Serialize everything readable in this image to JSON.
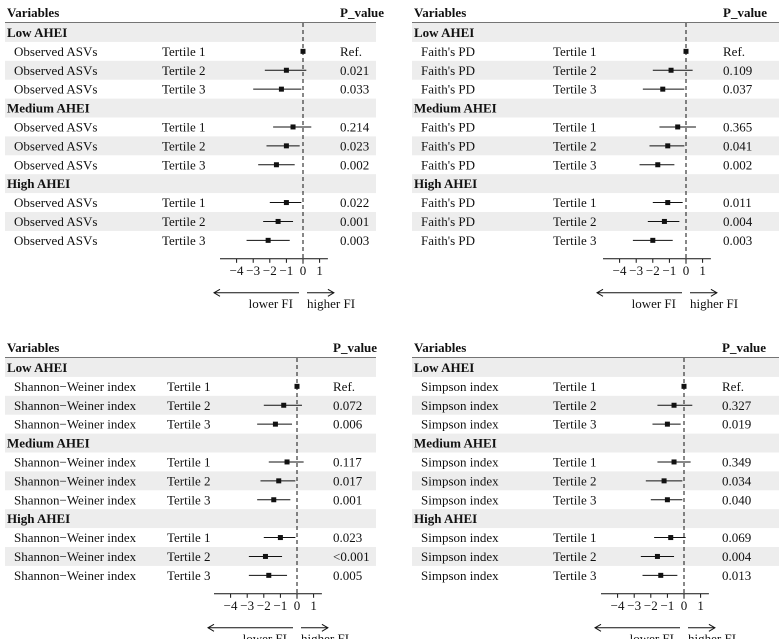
{
  "chart_data": [
    {
      "type": "forest",
      "header": {
        "variables": "Variables",
        "p_value": "P_value"
      },
      "metric": "Observed ASVs",
      "groups": [
        {
          "label": "Low AHEI",
          "rows": [
            {
              "tertile": "Tertile 1",
              "est": 0,
              "lo": 0,
              "hi": 0,
              "p": "Ref."
            },
            {
              "tertile": "Tertile 2",
              "est": -1.0,
              "lo": -2.3,
              "hi": 0.2,
              "p": "0.021"
            },
            {
              "tertile": "Tertile 3",
              "est": -1.3,
              "lo": -3.0,
              "hi": -0.1,
              "p": "0.033"
            }
          ]
        },
        {
          "label": "Medium AHEI",
          "rows": [
            {
              "tertile": "Tertile 1",
              "est": -0.6,
              "lo": -1.8,
              "hi": 0.5,
              "p": "0.214"
            },
            {
              "tertile": "Tertile 2",
              "est": -1.0,
              "lo": -2.2,
              "hi": -0.2,
              "p": "0.023"
            },
            {
              "tertile": "Tertile 3",
              "est": -1.6,
              "lo": -2.7,
              "hi": -0.5,
              "p": "0.002"
            }
          ]
        },
        {
          "label": "High AHEI",
          "rows": [
            {
              "tertile": "Tertile 1",
              "est": -1.0,
              "lo": -2.0,
              "hi": -0.1,
              "p": "0.022"
            },
            {
              "tertile": "Tertile 2",
              "est": -1.5,
              "lo": -2.4,
              "hi": -0.6,
              "p": "0.001"
            },
            {
              "tertile": "Tertile 3",
              "est": -2.1,
              "lo": -3.4,
              "hi": -0.8,
              "p": "0.003"
            }
          ]
        }
      ],
      "xticks": [
        "−4",
        "−3",
        "−2",
        "−1",
        "0",
        "1"
      ],
      "xtick_values": [
        -4,
        -3,
        -2,
        -1,
        0,
        1
      ],
      "xlim": [
        -5,
        1.5
      ],
      "direction_labels": {
        "left": "lower FI",
        "right": "higher FI"
      }
    },
    {
      "type": "forest",
      "header": {
        "variables": "Variables",
        "p_value": "P_value"
      },
      "metric": "Faith's PD",
      "groups": [
        {
          "label": "Low AHEI",
          "rows": [
            {
              "tertile": "Tertile 1",
              "est": 0,
              "lo": 0,
              "hi": 0,
              "p": "Ref."
            },
            {
              "tertile": "Tertile 2",
              "est": -0.9,
              "lo": -2.0,
              "hi": 0.4,
              "p": "0.109"
            },
            {
              "tertile": "Tertile 3",
              "est": -1.4,
              "lo": -2.6,
              "hi": -0.1,
              "p": "0.037"
            }
          ]
        },
        {
          "label": "Medium AHEI",
          "rows": [
            {
              "tertile": "Tertile 1",
              "est": -0.5,
              "lo": -1.6,
              "hi": 0.6,
              "p": "0.365"
            },
            {
              "tertile": "Tertile 2",
              "est": -1.1,
              "lo": -2.2,
              "hi": -0.1,
              "p": "0.041"
            },
            {
              "tertile": "Tertile 3",
              "est": -1.7,
              "lo": -2.8,
              "hi": -0.7,
              "p": "0.002"
            }
          ]
        },
        {
          "label": "High AHEI",
          "rows": [
            {
              "tertile": "Tertile 1",
              "est": -1.1,
              "lo": -2.0,
              "hi": -0.2,
              "p": "0.011"
            },
            {
              "tertile": "Tertile 2",
              "est": -1.3,
              "lo": -2.3,
              "hi": -0.4,
              "p": "0.004"
            },
            {
              "tertile": "Tertile 3",
              "est": -2.0,
              "lo": -3.2,
              "hi": -0.8,
              "p": "0.003"
            }
          ]
        }
      ],
      "xticks": [
        "−4",
        "−3",
        "−2",
        "−1",
        "0",
        "1"
      ],
      "xtick_values": [
        -4,
        -3,
        -2,
        -1,
        0,
        1
      ],
      "xlim": [
        -5,
        1.5
      ],
      "direction_labels": {
        "left": "lower FI",
        "right": "higher FI"
      }
    },
    {
      "type": "forest",
      "header": {
        "variables": "Variables",
        "p_value": "P_value"
      },
      "metric": "Shannon−Weiner index",
      "groups": [
        {
          "label": "Low AHEI",
          "rows": [
            {
              "tertile": "Tertile 1",
              "est": 0,
              "lo": 0,
              "hi": 0,
              "p": "Ref."
            },
            {
              "tertile": "Tertile 2",
              "est": -0.8,
              "lo": -2.0,
              "hi": 0.3,
              "p": "0.072"
            },
            {
              "tertile": "Tertile 3",
              "est": -1.3,
              "lo": -2.4,
              "hi": -0.3,
              "p": "0.006"
            }
          ]
        },
        {
          "label": "Medium AHEI",
          "rows": [
            {
              "tertile": "Tertile 1",
              "est": -0.6,
              "lo": -1.7,
              "hi": 0.4,
              "p": "0.117"
            },
            {
              "tertile": "Tertile 2",
              "est": -1.1,
              "lo": -2.2,
              "hi": -0.1,
              "p": "0.017"
            },
            {
              "tertile": "Tertile 3",
              "est": -1.4,
              "lo": -2.4,
              "hi": -0.4,
              "p": "0.001"
            }
          ]
        },
        {
          "label": "High AHEI",
          "rows": [
            {
              "tertile": "Tertile 1",
              "est": -1.0,
              "lo": -2.0,
              "hi": -0.1,
              "p": "0.023"
            },
            {
              "tertile": "Tertile 2",
              "est": -1.9,
              "lo": -2.9,
              "hi": -0.9,
              "p": "<0.001"
            },
            {
              "tertile": "Tertile 3",
              "est": -1.7,
              "lo": -2.9,
              "hi": -0.6,
              "p": "0.005"
            }
          ]
        }
      ],
      "xticks": [
        "−4",
        "−3",
        "−2",
        "−1",
        "0",
        "1"
      ],
      "xtick_values": [
        -4,
        -3,
        -2,
        -1,
        0,
        1
      ],
      "xlim": [
        -5,
        1.5
      ],
      "direction_labels": {
        "left": "lower FI",
        "right": "higher FI"
      }
    },
    {
      "type": "forest",
      "header": {
        "variables": "Variables",
        "p_value": "P_value"
      },
      "metric": "Simpson index",
      "groups": [
        {
          "label": "Low AHEI",
          "rows": [
            {
              "tertile": "Tertile 1",
              "est": 0,
              "lo": 0,
              "hi": 0,
              "p": "Ref."
            },
            {
              "tertile": "Tertile 2",
              "est": -0.6,
              "lo": -1.6,
              "hi": 0.5,
              "p": "0.327"
            },
            {
              "tertile": "Tertile 3",
              "est": -1.0,
              "lo": -1.9,
              "hi": -0.2,
              "p": "0.019"
            }
          ]
        },
        {
          "label": "Medium AHEI",
          "rows": [
            {
              "tertile": "Tertile 1",
              "est": -0.6,
              "lo": -1.6,
              "hi": 0.4,
              "p": "0.349"
            },
            {
              "tertile": "Tertile 2",
              "est": -1.2,
              "lo": -2.3,
              "hi": -0.1,
              "p": "0.034"
            },
            {
              "tertile": "Tertile 3",
              "est": -1.0,
              "lo": -2.0,
              "hi": -0.1,
              "p": "0.040"
            }
          ]
        },
        {
          "label": "High AHEI",
          "rows": [
            {
              "tertile": "Tertile 1",
              "est": -0.8,
              "lo": -1.8,
              "hi": 0.1,
              "p": "0.069"
            },
            {
              "tertile": "Tertile 2",
              "est": -1.6,
              "lo": -2.6,
              "hi": -0.6,
              "p": "0.004"
            },
            {
              "tertile": "Tertile 3",
              "est": -1.4,
              "lo": -2.5,
              "hi": -0.4,
              "p": "0.013"
            }
          ]
        }
      ],
      "xticks": [
        "−4",
        "−3",
        "−2",
        "−1",
        "0",
        "1"
      ],
      "xtick_values": [
        -4,
        -3,
        -2,
        -1,
        0,
        1
      ],
      "xlim": [
        -5,
        1.5
      ],
      "direction_labels": {
        "left": "lower FI",
        "right": "higher FI"
      }
    }
  ],
  "colors": {
    "stripe": "#ededed",
    "ink": "#111111",
    "border": "#222222"
  }
}
